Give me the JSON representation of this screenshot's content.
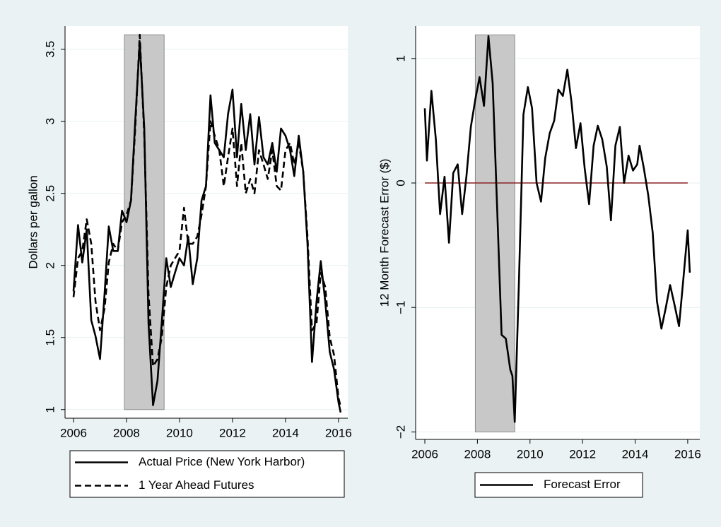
{
  "chart_data": [
    {
      "type": "line",
      "y_label": "Dollars per gallon",
      "xlim": [
        2005.68,
        2016.35
      ],
      "ylim": [
        0.94,
        3.66
      ],
      "xticks": [
        2006,
        2008,
        2010,
        2012,
        2014,
        2016
      ],
      "yticks": [
        1,
        1.5,
        2,
        2.5,
        3,
        3.5
      ],
      "grid": true,
      "shaded": {
        "x": [
          2007.92,
          2009.42
        ],
        "y": [
          1,
          3.6
        ],
        "color": "#c8c8c8"
      },
      "x": [
        2006.0,
        2006.17,
        2006.33,
        2006.5,
        2006.67,
        2006.83,
        2007.0,
        2007.17,
        2007.33,
        2007.5,
        2007.67,
        2007.83,
        2008.0,
        2008.17,
        2008.33,
        2008.5,
        2008.67,
        2008.83,
        2009.0,
        2009.17,
        2009.33,
        2009.5,
        2009.67,
        2009.83,
        2010.0,
        2010.17,
        2010.33,
        2010.5,
        2010.67,
        2010.83,
        2011.0,
        2011.17,
        2011.33,
        2011.5,
        2011.67,
        2011.83,
        2012.0,
        2012.17,
        2012.33,
        2012.5,
        2012.67,
        2012.83,
        2013.0,
        2013.17,
        2013.33,
        2013.5,
        2013.67,
        2013.83,
        2014.0,
        2014.17,
        2014.33,
        2014.5,
        2014.67,
        2014.83,
        2015.0,
        2015.17,
        2015.33,
        2015.5,
        2015.67,
        2015.83,
        2016.0,
        2016.08
      ],
      "series": [
        {
          "name": "Actual Price (New York Harbor)",
          "color": "#000000",
          "dash": false,
          "values": [
            1.82,
            2.28,
            2.02,
            2.25,
            1.62,
            1.51,
            1.35,
            1.8,
            2.27,
            2.1,
            2.1,
            2.38,
            2.3,
            2.45,
            3.0,
            3.55,
            2.95,
            1.6,
            1.03,
            1.2,
            1.6,
            2.05,
            1.85,
            1.95,
            2.05,
            2.0,
            2.2,
            1.87,
            2.05,
            2.45,
            2.55,
            3.18,
            2.85,
            2.8,
            2.75,
            3.05,
            3.22,
            2.75,
            3.12,
            2.8,
            3.05,
            2.7,
            3.03,
            2.75,
            2.7,
            2.85,
            2.65,
            2.95,
            2.9,
            2.8,
            2.62,
            2.9,
            2.65,
            2.15,
            1.33,
            1.75,
            2.03,
            1.75,
            1.4,
            1.28,
            1.05,
            0.98
          ]
        },
        {
          "name": "1 Year Ahead Futures",
          "color": "#000000",
          "dash": true,
          "values": [
            1.78,
            2.05,
            2.1,
            2.32,
            2.15,
            1.75,
            1.55,
            1.7,
            2.02,
            2.15,
            2.1,
            2.3,
            2.35,
            2.45,
            2.95,
            3.6,
            2.9,
            1.8,
            1.3,
            1.35,
            1.5,
            1.85,
            2.0,
            2.05,
            2.1,
            2.4,
            2.15,
            2.15,
            2.2,
            2.35,
            2.55,
            3.0,
            2.9,
            2.8,
            2.55,
            2.75,
            2.95,
            2.55,
            2.85,
            2.5,
            2.6,
            2.5,
            2.8,
            2.7,
            2.6,
            2.8,
            2.55,
            2.52,
            2.8,
            2.85,
            2.7,
            2.85,
            2.65,
            2.2,
            1.55,
            1.6,
            1.95,
            1.85,
            1.5,
            1.38,
            1.08,
            1.02
          ]
        }
      ]
    },
    {
      "type": "line",
      "y_label": "12 Month Forecast Error ($)",
      "xlim": [
        2005.65,
        2016.46
      ],
      "ylim": [
        -2.06,
        1.26
      ],
      "xticks": [
        2006,
        2008,
        2010,
        2012,
        2014,
        2016
      ],
      "yticks": [
        {
          "value": -2,
          "label": "−2"
        },
        {
          "value": -1,
          "label": "−1"
        },
        0,
        1
      ],
      "grid": true,
      "shaded": {
        "x": [
          2007.92,
          2009.42
        ],
        "y": [
          -2,
          1.19
        ],
        "color": "#c8c8c8"
      },
      "hline": {
        "y": 0,
        "x": [
          2006,
          2016
        ],
        "color": "#8b2323"
      },
      "x": [
        2006.0,
        2006.08,
        2006.25,
        2006.42,
        2006.58,
        2006.75,
        2006.92,
        2007.08,
        2007.25,
        2007.42,
        2007.58,
        2007.75,
        2007.92,
        2008.08,
        2008.25,
        2008.42,
        2008.58,
        2008.75,
        2008.92,
        2009.08,
        2009.25,
        2009.33,
        2009.42,
        2009.58,
        2009.75,
        2009.92,
        2010.08,
        2010.25,
        2010.42,
        2010.58,
        2010.75,
        2010.92,
        2011.08,
        2011.25,
        2011.42,
        2011.58,
        2011.75,
        2011.92,
        2012.08,
        2012.25,
        2012.42,
        2012.58,
        2012.75,
        2012.92,
        2013.08,
        2013.25,
        2013.42,
        2013.58,
        2013.75,
        2013.92,
        2014.08,
        2014.17,
        2014.33,
        2014.5,
        2014.67,
        2014.83,
        2015.0,
        2015.17,
        2015.33,
        2015.5,
        2015.67,
        2015.83,
        2016.0,
        2016.08
      ],
      "series": [
        {
          "name": "Forecast Error",
          "color": "#000000",
          "dash": false,
          "values": [
            0.6,
            0.18,
            0.74,
            0.35,
            -0.25,
            0.05,
            -0.48,
            0.08,
            0.15,
            -0.25,
            0.05,
            0.45,
            0.67,
            0.85,
            0.62,
            1.18,
            0.8,
            -0.2,
            -1.22,
            -1.25,
            -1.5,
            -1.55,
            -1.92,
            -0.8,
            0.55,
            0.77,
            0.6,
            0.0,
            -0.15,
            0.2,
            0.4,
            0.5,
            0.75,
            0.7,
            0.91,
            0.65,
            0.28,
            0.48,
            0.12,
            -0.17,
            0.3,
            0.46,
            0.35,
            0.13,
            -0.3,
            0.3,
            0.45,
            0.0,
            0.22,
            0.1,
            0.15,
            0.3,
            0.12,
            -0.1,
            -0.4,
            -0.95,
            -1.17,
            -1.0,
            -0.82,
            -0.98,
            -1.15,
            -0.78,
            -0.38,
            -0.72
          ]
        }
      ]
    }
  ]
}
